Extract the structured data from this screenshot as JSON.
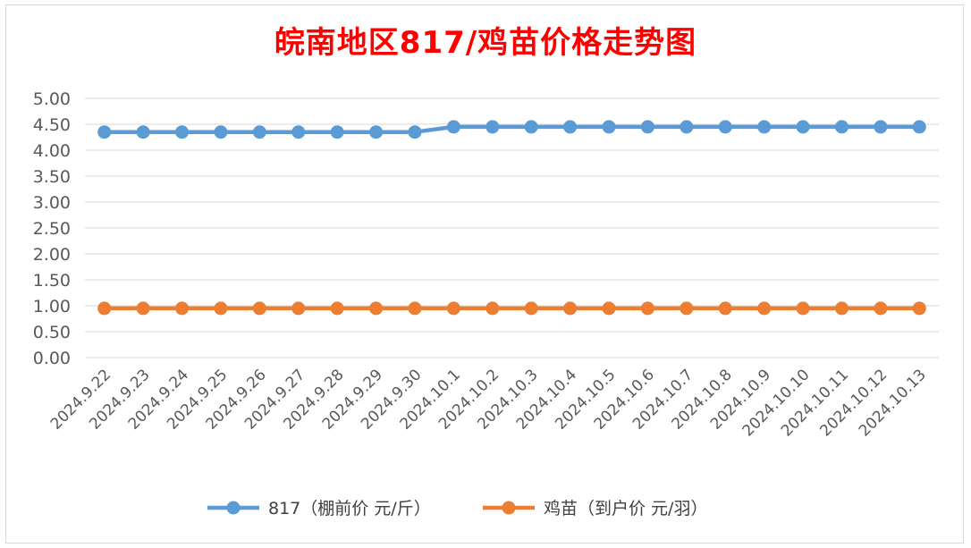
{
  "chart_data": {
    "type": "line",
    "title": "皖南地区817/鸡苗价格走势图",
    "categories": [
      "2024.9.22",
      "2024.9.23",
      "2024.9.24",
      "2024.9.25",
      "2024.9.26",
      "2024.9.27",
      "2024.9.28",
      "2024.9.29",
      "2024.9.30",
      "2024.10.1",
      "2024.10.2",
      "2024.10.3",
      "2024.10.4",
      "2024.10.5",
      "2024.10.6",
      "2024.10.7",
      "2024.10.8",
      "2024.10.9",
      "2024.10.10",
      "2024.10.11",
      "2024.10.12",
      "2024.10.13"
    ],
    "series": [
      {
        "name": "817（棚前价 元/斤）",
        "color": "#5b9bd5",
        "values": [
          4.35,
          4.35,
          4.35,
          4.35,
          4.35,
          4.35,
          4.35,
          4.35,
          4.35,
          4.45,
          4.45,
          4.45,
          4.45,
          4.45,
          4.45,
          4.45,
          4.45,
          4.45,
          4.45,
          4.45,
          4.45,
          4.45
        ]
      },
      {
        "name": "鸡苗（到户价 元/羽）",
        "color": "#ed7d31",
        "values": [
          0.95,
          0.95,
          0.95,
          0.95,
          0.95,
          0.95,
          0.95,
          0.95,
          0.95,
          0.95,
          0.95,
          0.95,
          0.95,
          0.95,
          0.95,
          0.95,
          0.95,
          0.95,
          0.95,
          0.95,
          0.95,
          0.95
        ]
      }
    ],
    "yticks": [
      "0.00",
      "0.50",
      "1.00",
      "1.50",
      "2.00",
      "2.50",
      "3.00",
      "3.50",
      "4.00",
      "4.50",
      "5.00"
    ],
    "ylim": [
      0,
      5
    ],
    "grid": true,
    "legend_position": "bottom"
  }
}
